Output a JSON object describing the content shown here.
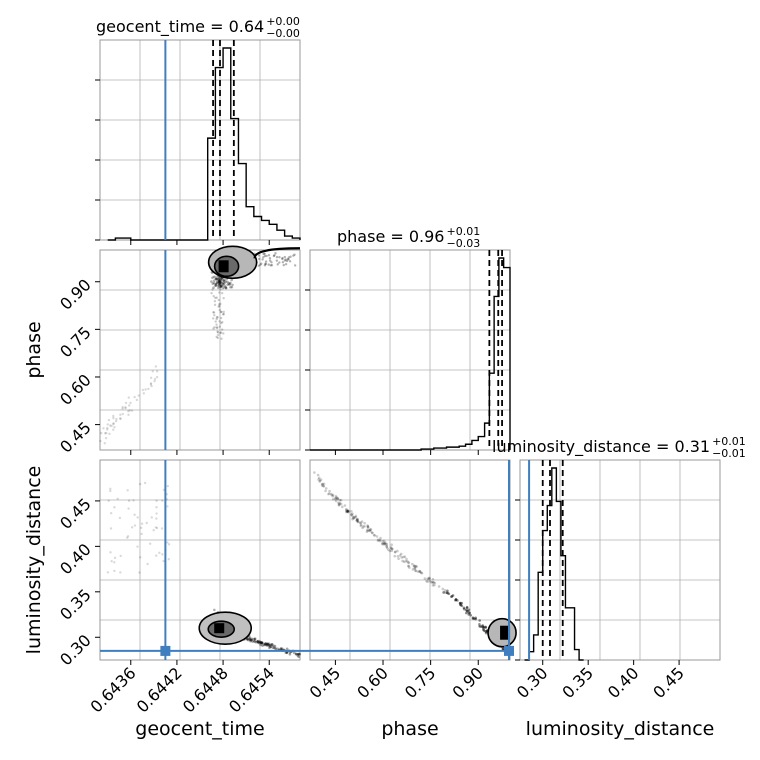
{
  "chart_data": {
    "type": "corner",
    "parameters": [
      "geocent_time",
      "phase",
      "luminosity_distance"
    ],
    "injection": {
      "geocent_time": 0.64405,
      "phase": 1.0,
      "luminosity_distance": 0.285
    },
    "grid": true,
    "colors": {
      "injection": "#3f7fbf",
      "contour": "#000000",
      "hist": "#000000",
      "grid": "#b0b0b0",
      "quantile": "#000000"
    },
    "titles": [
      {
        "param": "geocent_time",
        "label": "geocent_time = 0.64",
        "plus": "+0.00",
        "minus": "−0.00"
      },
      {
        "param": "phase",
        "label": "phase = 0.96",
        "plus": "+0.01",
        "minus": "−0.03"
      },
      {
        "param": "luminosity_distance",
        "label": "luminosity_distance = 0.31",
        "plus": "+0.01",
        "minus": "−0.01"
      }
    ],
    "axes": {
      "geocent_time": {
        "label": "geocent_time",
        "lim": [
          0.6432,
          0.6458
        ],
        "ticks": [
          0.6436,
          0.6442,
          0.6448,
          0.6454
        ],
        "tick_labels": [
          "0.6436",
          "0.6442",
          "0.6448",
          "0.6454"
        ]
      },
      "phase": {
        "label": "phase",
        "lim": [
          0.37,
          1.0
        ],
        "ticks": [
          0.45,
          0.6,
          0.75,
          0.9
        ],
        "tick_labels": [
          "0.45",
          "0.60",
          "0.75",
          "0.90"
        ]
      },
      "luminosity_distance": {
        "label": "luminosity_distance",
        "lim": [
          0.275,
          0.495
        ],
        "ticks": [
          0.3,
          0.35,
          0.4,
          0.45
        ],
        "tick_labels": [
          "0.30",
          "0.35",
          "0.40",
          "0.45"
        ]
      }
    },
    "hist_geocent_time": {
      "edges": [
        0.6433,
        0.6434,
        0.6435,
        0.6436,
        0.6437,
        0.6438,
        0.6439,
        0.644,
        0.6441,
        0.6442,
        0.6443,
        0.6444,
        0.6445,
        0.6446,
        0.6447,
        0.6448,
        0.6449,
        0.645,
        0.6451,
        0.6452,
        0.6453,
        0.6454,
        0.6455,
        0.6456,
        0.6457,
        0.6458
      ],
      "counts": [
        0,
        0.01,
        0.01,
        0,
        0,
        0,
        0,
        0,
        0,
        0,
        0,
        0,
        0,
        0.52,
        0.88,
        0.98,
        0.62,
        0.39,
        0.17,
        0.12,
        0.1,
        0.08,
        0.05,
        0.02,
        0.01
      ],
      "quantiles": [
        0.64467,
        0.64476,
        0.64494
      ]
    },
    "hist_phase": {
      "edges": [
        0.37,
        0.42,
        0.47,
        0.52,
        0.57,
        0.62,
        0.67,
        0.72,
        0.76,
        0.8,
        0.84,
        0.86,
        0.88,
        0.9,
        0.92,
        0.935,
        0.95,
        0.965,
        0.98,
        1.0
      ],
      "counts": [
        0,
        0,
        0,
        0,
        0,
        0,
        0,
        0.005,
        0.01,
        0.015,
        0.02,
        0.03,
        0.05,
        0.07,
        0.14,
        0.4,
        0.8,
        1.0,
        0.95
      ],
      "quantiles": [
        0.935,
        0.963,
        0.975
      ]
    },
    "hist_luminosity_distance": {
      "edges": [
        0.28,
        0.285,
        0.29,
        0.295,
        0.3,
        0.305,
        0.31,
        0.315,
        0.32,
        0.325,
        0.33,
        0.335,
        0.34,
        0.345
      ],
      "counts": [
        0,
        0.04,
        0.12,
        0.42,
        0.62,
        0.74,
        0.92,
        0.76,
        0.5,
        0.25,
        0.25,
        0.05,
        0
      ],
      "quantiles": [
        0.3,
        0.308,
        0.322
      ]
    }
  }
}
